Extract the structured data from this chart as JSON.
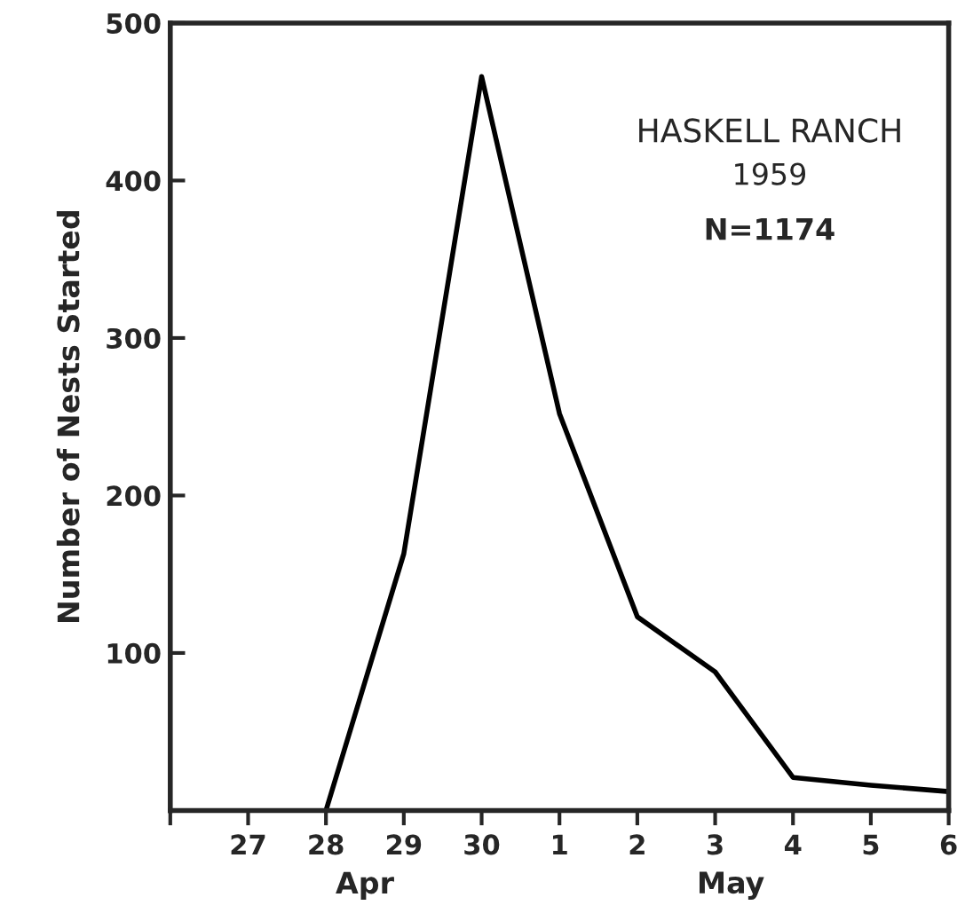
{
  "chart_data": {
    "type": "line",
    "ylabel": "Number of Nests Started",
    "categories": [
      null,
      "27",
      "28",
      "29",
      "30",
      "1",
      "2",
      "3",
      "4",
      "5",
      "6"
    ],
    "series": [
      {
        "color": "#000000",
        "values": [
          null,
          null,
          0,
          163,
          466,
          252,
          123,
          88,
          21,
          16,
          12
        ]
      }
    ],
    "ylim": [
      0,
      500
    ],
    "yticks": [
      {
        "value": 0,
        "label": null
      },
      100,
      200,
      300,
      400,
      500
    ],
    "annotations": [
      "HASKELL RANCH",
      "1959",
      "N=1174",
      "Apr",
      "May"
    ],
    "grid": false,
    "legend": false,
    "marker": "none",
    "line_style": "solid"
  }
}
